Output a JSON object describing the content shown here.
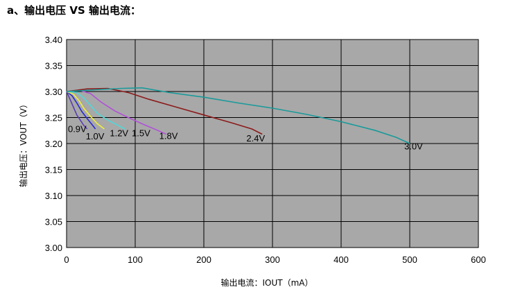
{
  "page": {
    "title": "a、输出电压 VS 输出电流："
  },
  "chart_data": {
    "type": "line",
    "title": "",
    "xlabel": "输出电流：IOUT（mA）",
    "ylabel": "输出电压：VOUT（V）",
    "xlim": [
      0,
      600
    ],
    "ylim": [
      3.0,
      3.4
    ],
    "xticks": [
      "0",
      "100",
      "200",
      "300",
      "400",
      "500",
      "600"
    ],
    "yticks": [
      "3.00",
      "3.05",
      "3.10",
      "3.15",
      "3.20",
      "3.25",
      "3.30",
      "3.35",
      "3.40"
    ],
    "grid": true,
    "plot_background": "#a8a8a8",
    "series": [
      {
        "name": "0.9V",
        "color": "#5a3db0",
        "x": [
          0,
          5,
          10,
          15,
          20,
          25,
          30
        ],
        "y": [
          3.3,
          3.285,
          3.27,
          3.255,
          3.245,
          3.235,
          3.228
        ]
      },
      {
        "name": "1.0V",
        "color": "#2a2ad0",
        "x": [
          0,
          8,
          15,
          22,
          30,
          38,
          42
        ],
        "y": [
          3.3,
          3.292,
          3.278,
          3.262,
          3.248,
          3.235,
          3.228
        ]
      },
      {
        "name": "1.2V",
        "color": "#f0f040",
        "x": [
          0,
          10,
          18,
          25,
          35,
          45,
          55
        ],
        "y": [
          3.3,
          3.295,
          3.283,
          3.268,
          3.252,
          3.238,
          3.228
        ]
      },
      {
        "name": "1.5V",
        "color": "#50d8d8",
        "x": [
          0,
          15,
          25,
          35,
          45,
          60,
          75,
          85
        ],
        "y": [
          3.3,
          3.298,
          3.288,
          3.273,
          3.258,
          3.245,
          3.235,
          3.228
        ]
      },
      {
        "name": "1.8V",
        "color": "#b050d8",
        "x": [
          0,
          20,
          35,
          50,
          70,
          90,
          110,
          130,
          145
        ],
        "y": [
          3.3,
          3.302,
          3.296,
          3.28,
          3.263,
          3.25,
          3.238,
          3.227,
          3.218
        ]
      },
      {
        "name": "2.4V",
        "color": "#8c1a1a",
        "x": [
          0,
          30,
          60,
          90,
          120,
          160,
          200,
          240,
          270,
          285
        ],
        "y": [
          3.3,
          3.305,
          3.306,
          3.298,
          3.285,
          3.27,
          3.255,
          3.24,
          3.228,
          3.218
        ]
      },
      {
        "name": "3.0V",
        "color": "#1a9a9a",
        "x": [
          0,
          50,
          80,
          110,
          150,
          200,
          250,
          300,
          350,
          400,
          450,
          480,
          500
        ],
        "y": [
          3.3,
          3.304,
          3.306,
          3.307,
          3.298,
          3.289,
          3.278,
          3.268,
          3.256,
          3.242,
          3.225,
          3.212,
          3.2
        ]
      }
    ],
    "labels": [
      {
        "text": "0.9V",
        "x": 2,
        "y": 3.222
      },
      {
        "text": "1.0V",
        "x": 28,
        "y": 3.208
      },
      {
        "text": "1.2V",
        "x": 63,
        "y": 3.214
      },
      {
        "text": "1.5V",
        "x": 95,
        "y": 3.214
      },
      {
        "text": "1.8V",
        "x": 135,
        "y": 3.209
      },
      {
        "text": "2.4V",
        "x": 262,
        "y": 3.204
      },
      {
        "text": "3.0V",
        "x": 492,
        "y": 3.189
      }
    ]
  }
}
